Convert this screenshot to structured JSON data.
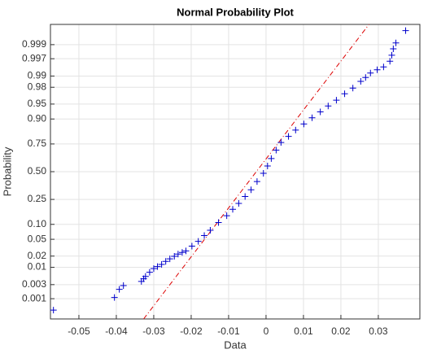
{
  "chart_data": {
    "type": "probplot",
    "title": "Normal Probability Plot",
    "x_label": "Data",
    "y_label": "Probability",
    "yscale": "normal",
    "grid": true,
    "xlim": [
      -0.0576,
      0.0411
    ],
    "xticks": [
      -0.05,
      -0.04,
      -0.03,
      -0.02,
      -0.01,
      0,
      0.01,
      0.02,
      0.03
    ],
    "ylim": [
      0.00017,
      0.99983
    ],
    "yticks": [
      0.001,
      0.003,
      0.01,
      0.02,
      0.05,
      {
        "value": 0.1,
        "label": "0.10"
      },
      0.25,
      {
        "value": 0.5,
        "label": "0.50"
      },
      0.75,
      {
        "value": 0.9,
        "label": "0.90"
      },
      0.95,
      0.98,
      0.99,
      0.997,
      0.999
    ],
    "series": [
      {
        "name": "Data",
        "color": "#0000cc",
        "x": [
          -0.0568,
          -0.0405,
          -0.0392,
          -0.0381,
          -0.0333,
          -0.0327,
          -0.0322,
          -0.0311,
          -0.03,
          -0.029,
          -0.0279,
          -0.0268,
          -0.0257,
          -0.0245,
          -0.0235,
          -0.0224,
          -0.0214,
          -0.0198,
          -0.0181,
          -0.0165,
          -0.0149,
          -0.0127,
          -0.0105,
          -0.0089,
          -0.0073,
          -0.0056,
          -0.004,
          -0.0024,
          -0.0007,
          0.0004,
          0.0014,
          0.0027,
          0.004,
          0.006,
          0.0079,
          0.0101,
          0.0123,
          0.0145,
          0.0166,
          0.0188,
          0.021,
          0.0232,
          0.0253,
          0.0266,
          0.0279,
          0.0297,
          0.0314,
          0.0331,
          0.0336,
          0.034,
          0.0347,
          0.0373
        ],
        "values": [
          0.00038,
          0.0011,
          0.0021,
          0.0028,
          0.0038,
          0.0046,
          0.0054,
          0.0072,
          0.0092,
          0.0105,
          0.012,
          0.0145,
          0.017,
          0.0198,
          0.0225,
          0.0248,
          0.027,
          0.035,
          0.045,
          0.06,
          0.077,
          0.108,
          0.142,
          0.18,
          0.22,
          0.273,
          0.33,
          0.405,
          0.484,
          0.555,
          0.625,
          0.7,
          0.761,
          0.805,
          0.844,
          0.877,
          0.905,
          0.927,
          0.945,
          0.959,
          0.971,
          0.979,
          0.986,
          0.989,
          0.9918,
          0.9934,
          0.9946,
          0.9964,
          0.9977,
          0.9986,
          0.99913,
          0.9997
        ]
      }
    ],
    "reference_line": {
      "color": "#dd0000",
      "x": [
        -0.0327,
        0.0275
      ],
      "values": [
        0.00017,
        0.99983
      ]
    }
  }
}
